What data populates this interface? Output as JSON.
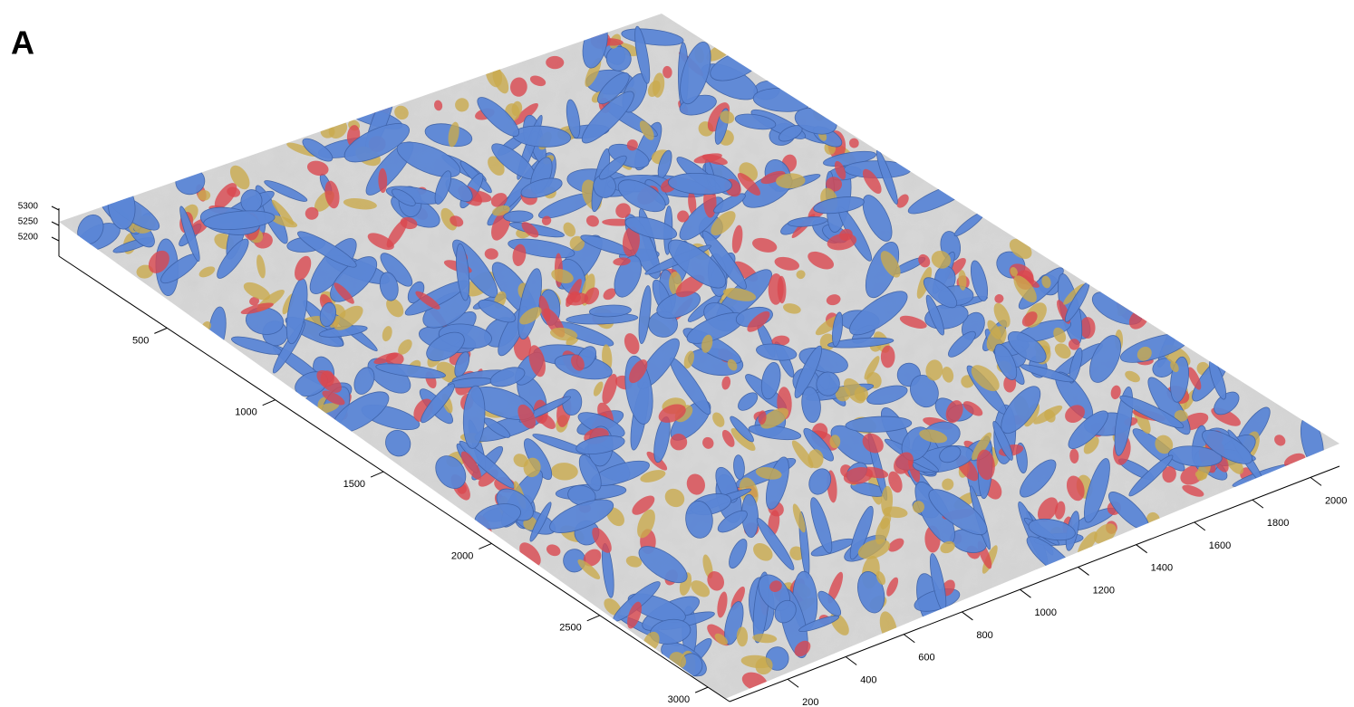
{
  "chart_data": {
    "type": "surface3d",
    "panel_label": "A",
    "xlim": [
      0,
      3100
    ],
    "xticks": [
      500,
      1000,
      1500,
      2000,
      2500,
      3000
    ],
    "ylim": [
      0,
      2100
    ],
    "yticks": [
      200,
      400,
      600,
      800,
      1000,
      1200,
      1400,
      1600,
      1800,
      2000
    ],
    "zlim": [
      5150,
      5300
    ],
    "zticks": [
      5200,
      5250,
      5300
    ],
    "colors": [
      "#5b86d6",
      "#d9474f",
      "#c9aa4e"
    ]
  }
}
